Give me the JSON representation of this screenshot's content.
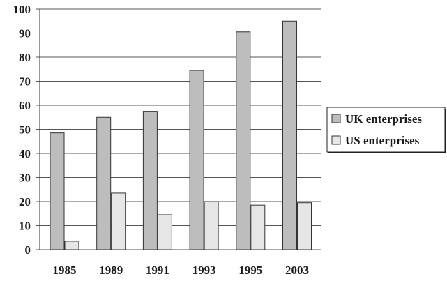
{
  "chart_data": {
    "type": "bar",
    "title": "",
    "xlabel": "",
    "ylabel": "",
    "categories": [
      "1985",
      "1989",
      "1991",
      "1993",
      "1995",
      "2003"
    ],
    "series": [
      {
        "name": "UK enterprises",
        "values": [
          48.5,
          55,
          57.5,
          74.5,
          90.5,
          95
        ]
      },
      {
        "name": "US enterprises",
        "values": [
          3.5,
          23.5,
          14.5,
          20,
          18.5,
          19.5
        ]
      }
    ],
    "ylim": [
      0,
      100
    ],
    "yticks": [
      "0",
      "10",
      "20",
      "30",
      "40",
      "50",
      "60",
      "70",
      "80",
      "90",
      "100"
    ],
    "grid": true,
    "legend_position": "right",
    "colors": {
      "UK enterprises": "#bdbdbd",
      "US enterprises": "#e6e6e6"
    }
  }
}
